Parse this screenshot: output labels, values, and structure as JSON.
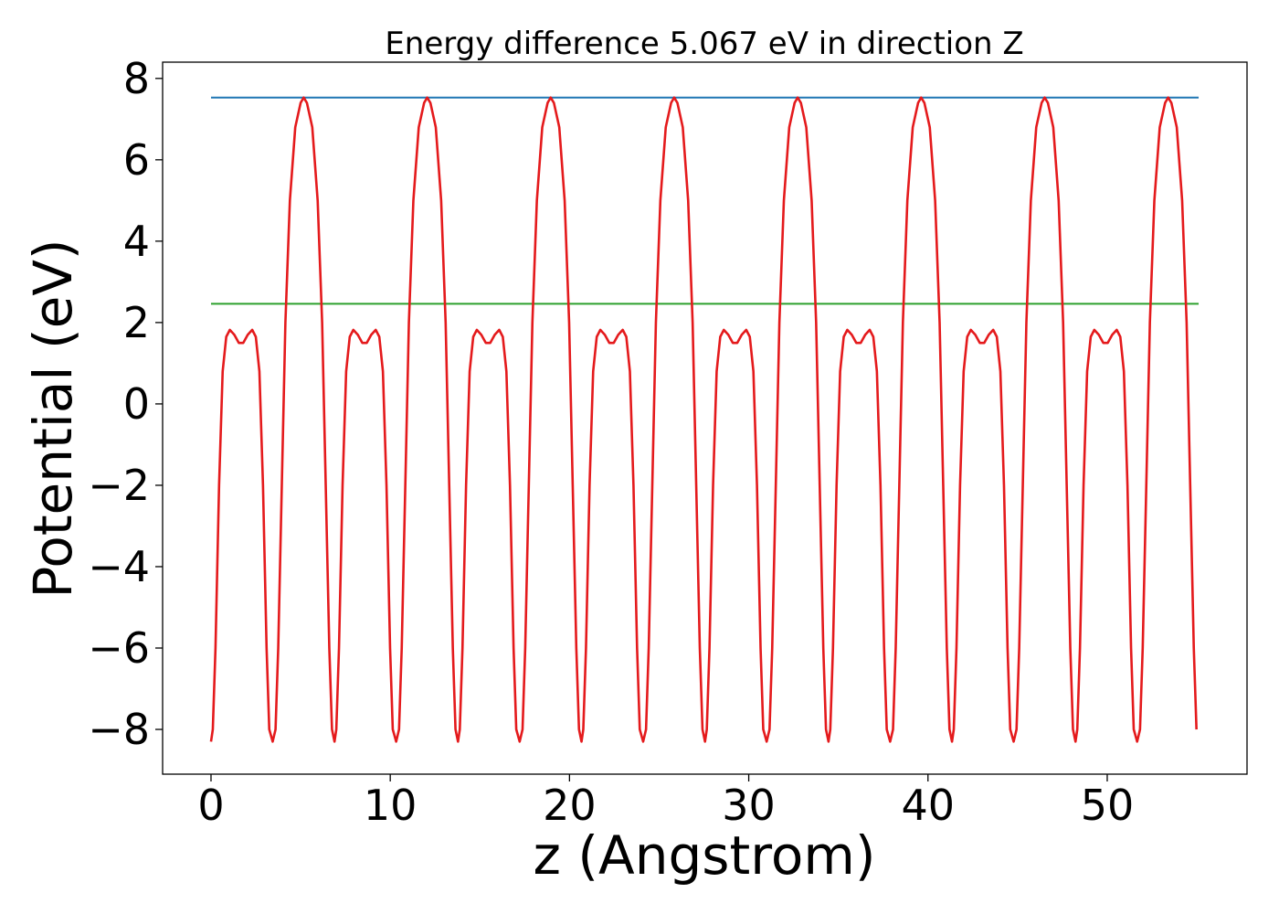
{
  "chart_data": {
    "type": "line",
    "title": "Energy difference 5.067 eV in direction Z",
    "xlabel": "z (Angstrom)",
    "ylabel": "Potential (eV)",
    "xlim": [
      -2.7,
      57.8
    ],
    "ylim": [
      -9.1,
      8.4
    ],
    "xticks": [
      0,
      10,
      20,
      30,
      40,
      50
    ],
    "yticks": [
      -8,
      -6,
      -4,
      -2,
      0,
      2,
      4,
      6,
      8
    ],
    "xtick_labels": [
      "0",
      "10",
      "20",
      "30",
      "40",
      "50"
    ],
    "ytick_labels": [
      "−8",
      "−6",
      "−4",
      "−2",
      "0",
      "2",
      "4",
      "6",
      "8"
    ],
    "grid": false,
    "series": [
      {
        "color": "#1f77b4",
        "style": "horizontal",
        "x": [
          0,
          55.1
        ],
        "y": [
          7.53,
          7.53
        ]
      },
      {
        "color": "#2ca02c",
        "style": "horizontal",
        "x": [
          0,
          55.1
        ],
        "y": [
          2.46,
          2.46
        ]
      },
      {
        "color": "#e41a1c",
        "style": "periodic-profile",
        "x_range": [
          0,
          55.1
        ],
        "period": 6.89,
        "cycles": 8,
        "profile_points": [
          [
            0.0,
            -8.3
          ],
          [
            0.1,
            -8.0
          ],
          [
            0.25,
            -6.0
          ],
          [
            0.45,
            -2.0
          ],
          [
            0.65,
            0.8
          ],
          [
            0.85,
            1.65
          ],
          [
            1.05,
            1.82
          ],
          [
            1.3,
            1.7
          ],
          [
            1.55,
            1.5
          ],
          [
            1.8,
            1.5
          ],
          [
            2.05,
            1.7
          ],
          [
            2.3,
            1.82
          ],
          [
            2.5,
            1.65
          ],
          [
            2.7,
            0.8
          ],
          [
            2.9,
            -2.0
          ],
          [
            3.1,
            -6.0
          ],
          [
            3.25,
            -8.0
          ],
          [
            3.44,
            -8.3
          ],
          [
            3.6,
            -8.0
          ],
          [
            3.75,
            -6.0
          ],
          [
            3.95,
            -2.0
          ],
          [
            4.15,
            2.0
          ],
          [
            4.4,
            5.0
          ],
          [
            4.7,
            6.8
          ],
          [
            5.0,
            7.4
          ],
          [
            5.17,
            7.53
          ],
          [
            5.35,
            7.4
          ],
          [
            5.65,
            6.8
          ],
          [
            5.95,
            5.0
          ],
          [
            6.2,
            2.0
          ],
          [
            6.4,
            -2.0
          ],
          [
            6.6,
            -6.0
          ],
          [
            6.75,
            -8.0
          ],
          [
            6.89,
            -8.3
          ]
        ]
      }
    ]
  }
}
